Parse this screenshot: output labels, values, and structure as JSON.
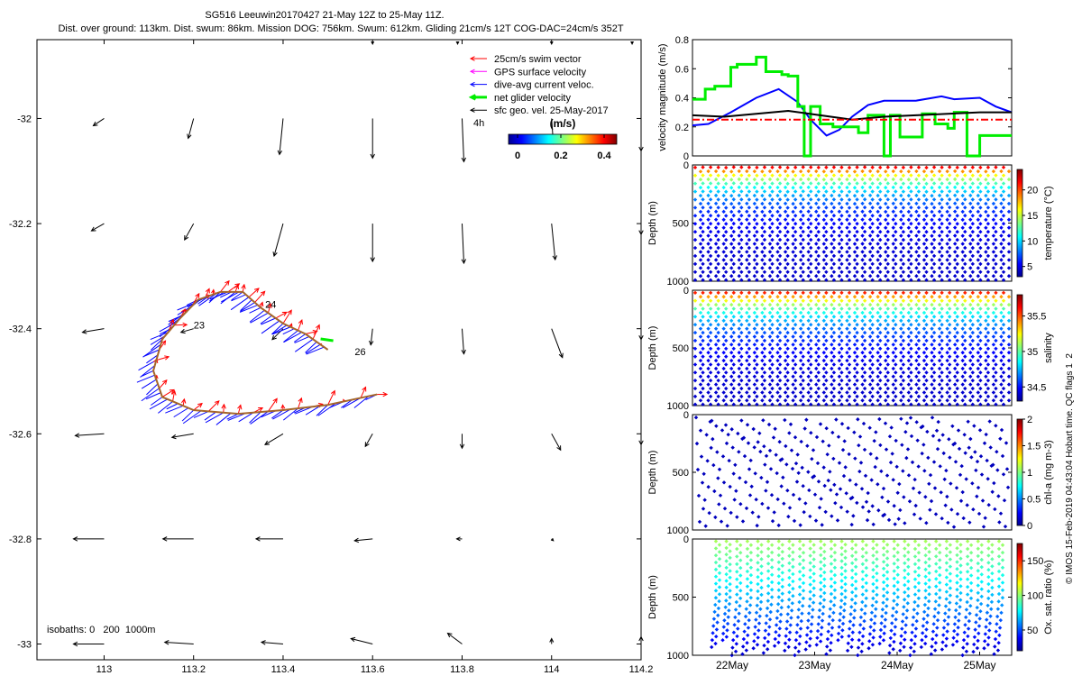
{
  "header": {
    "title": "SG516 Leeuwin20170427 21-May 12Z to 25-May 11Z.",
    "subtitle": "Dist. over ground: 113km. Dist. swum: 86km. Mission DOG: 756km. Swum: 612km. Gliding 21cm/s 12T COG-DAC=24cm/s 352T"
  },
  "colors": {
    "swim": "#ff0000",
    "gps": "#ff00ff",
    "dac": "#0000ff",
    "net": "#00ee00",
    "geo": "#000000",
    "track": "#a5662a",
    "refline": "#ff0000"
  },
  "chart_data": [
    {
      "type": "scatter",
      "name": "map",
      "xlim": [
        112.85,
        114.2
      ],
      "ylim": [
        -33.03,
        -31.85
      ],
      "xticks": [
        113,
        113.2,
        113.4,
        113.6,
        113.8,
        114,
        114.2
      ],
      "yticks": [
        -32,
        -32.2,
        -32.4,
        -32.6,
        -32.8,
        -33
      ],
      "xtick_labels": [
        "113",
        "113.2",
        "113.4",
        "113.6",
        "113.8",
        "114",
        "114.2"
      ],
      "ytick_labels": [
        "-32",
        "-32.2",
        "-32.4",
        "-32.6",
        "-32.8",
        "-33"
      ],
      "legend": [
        {
          "label": "25cm/s swim vector",
          "color": "#ff0000"
        },
        {
          "label": "GPS surface velocity",
          "color": "#ff00ff"
        },
        {
          "label": "dive-avg current veloc.",
          "color": "#0000ff"
        },
        {
          "label": "net glider velocity",
          "color": "#00ee00"
        },
        {
          "label": "sfc geo. vel. 25-May-2017",
          "color": "#000000"
        }
      ],
      "legend_location": "top-right",
      "scale_label": "4h",
      "colorbar": {
        "label": "(m/s)",
        "ticks": [
          "0",
          "0.2",
          "0.4"
        ],
        "range": [
          0,
          0.5
        ]
      },
      "isobath_note": "isobaths: 0   200  1000m",
      "day_labels": [
        {
          "text": "23",
          "lon": 113.2,
          "lat": -32.4
        },
        {
          "text": "24",
          "lon": 113.36,
          "lat": -32.36
        },
        {
          "text": "26",
          "lon": 113.56,
          "lat": -32.45
        }
      ],
      "track": [
        [
          113.61,
          -32.525
        ],
        [
          113.5,
          -32.545
        ],
        [
          113.4,
          -32.555
        ],
        [
          113.3,
          -32.562
        ],
        [
          113.2,
          -32.555
        ],
        [
          113.13,
          -32.53
        ],
        [
          113.11,
          -32.48
        ],
        [
          113.13,
          -32.42
        ],
        [
          113.17,
          -32.38
        ],
        [
          113.21,
          -32.345
        ],
        [
          113.26,
          -32.33
        ],
        [
          113.31,
          -32.33
        ],
        [
          113.35,
          -32.36
        ],
        [
          113.4,
          -32.39
        ],
        [
          113.45,
          -32.41
        ],
        [
          113.5,
          -32.44
        ]
      ],
      "geo_vectors": [
        {
          "lon": 113.0,
          "lat": -32.0,
          "u": -0.3,
          "v": -0.2
        },
        {
          "lon": 113.2,
          "lat": -32.0,
          "u": -0.15,
          "v": -0.55
        },
        {
          "lon": 113.4,
          "lat": -32.0,
          "u": -0.1,
          "v": -1.0
        },
        {
          "lon": 113.6,
          "lat": -32.0,
          "u": 0.0,
          "v": -1.1
        },
        {
          "lon": 113.8,
          "lat": -32.0,
          "u": 0.05,
          "v": -1.2
        },
        {
          "lon": 114.0,
          "lat": -32.0,
          "u": 0.05,
          "v": -0.7
        },
        {
          "lon": 114.2,
          "lat": -32.0,
          "u": 0.0,
          "v": -0.9
        },
        {
          "lon": 113.0,
          "lat": -32.2,
          "u": -0.35,
          "v": -0.2
        },
        {
          "lon": 113.2,
          "lat": -32.2,
          "u": -0.25,
          "v": -0.45
        },
        {
          "lon": 113.4,
          "lat": -32.2,
          "u": -0.25,
          "v": -0.9
        },
        {
          "lon": 113.6,
          "lat": -32.2,
          "u": 0.0,
          "v": -1.05
        },
        {
          "lon": 113.8,
          "lat": -32.2,
          "u": 0.05,
          "v": -1.1
        },
        {
          "lon": 114.0,
          "lat": -32.2,
          "u": 0.1,
          "v": -1.0
        },
        {
          "lon": 114.2,
          "lat": -32.2,
          "u": 0.0,
          "v": -0.3
        },
        {
          "lon": 113.0,
          "lat": -32.4,
          "u": -0.6,
          "v": -0.1
        },
        {
          "lon": 113.2,
          "lat": -32.4,
          "u": -0.35,
          "v": -0.1
        },
        {
          "lon": 113.4,
          "lat": -32.4,
          "u": -0.3,
          "v": -0.3
        },
        {
          "lon": 113.6,
          "lat": -32.4,
          "u": -0.05,
          "v": -0.45
        },
        {
          "lon": 113.8,
          "lat": -32.4,
          "u": 0.05,
          "v": -0.7
        },
        {
          "lon": 114.0,
          "lat": -32.4,
          "u": 0.3,
          "v": -0.8
        },
        {
          "lon": 114.2,
          "lat": -32.4,
          "u": 0.0,
          "v": -0.3
        },
        {
          "lon": 113.0,
          "lat": -32.6,
          "u": -0.8,
          "v": -0.05
        },
        {
          "lon": 113.2,
          "lat": -32.6,
          "u": -0.6,
          "v": -0.1
        },
        {
          "lon": 113.4,
          "lat": -32.6,
          "u": -0.5,
          "v": -0.3
        },
        {
          "lon": 113.6,
          "lat": -32.6,
          "u": -0.2,
          "v": -0.35
        },
        {
          "lon": 113.8,
          "lat": -32.6,
          "u": 0.0,
          "v": -0.4
        },
        {
          "lon": 114.0,
          "lat": -32.6,
          "u": 0.25,
          "v": -0.45
        },
        {
          "lon": 114.2,
          "lat": -32.6,
          "u": 0.0,
          "v": -0.3
        },
        {
          "lon": 113.0,
          "lat": -32.8,
          "u": -0.85,
          "v": 0.0
        },
        {
          "lon": 113.2,
          "lat": -32.8,
          "u": -0.85,
          "v": 0.0
        },
        {
          "lon": 113.4,
          "lat": -32.8,
          "u": -0.75,
          "v": 0.0
        },
        {
          "lon": 113.6,
          "lat": -32.8,
          "u": -0.5,
          "v": -0.05
        },
        {
          "lon": 113.8,
          "lat": -32.8,
          "u": -0.15,
          "v": 0.0
        },
        {
          "lon": 114.0,
          "lat": -32.8,
          "u": 0.05,
          "v": -0.05
        },
        {
          "lon": 113.0,
          "lat": -33.0,
          "u": -0.85,
          "v": 0.0
        },
        {
          "lon": 113.2,
          "lat": -33.0,
          "u": -0.8,
          "v": 0.05
        },
        {
          "lon": 113.4,
          "lat": -33.0,
          "u": -0.6,
          "v": 0.05
        },
        {
          "lon": 113.6,
          "lat": -33.0,
          "u": -0.6,
          "v": 0.15
        },
        {
          "lon": 113.8,
          "lat": -33.0,
          "u": -0.4,
          "v": 0.3
        },
        {
          "lon": 114.0,
          "lat": -33.0,
          "u": 0.0,
          "v": 0.15
        },
        {
          "lon": 114.2,
          "lat": -33.0,
          "u": 0.0,
          "v": 0.2
        }
      ]
    },
    {
      "type": "line",
      "name": "velocity",
      "ylabel": "velocity magnitude (m/s)",
      "ylim": [
        0,
        0.8
      ],
      "yticks": [
        0,
        0.2,
        0.4,
        0.6,
        0.8
      ],
      "ytick_labels": [
        "0",
        "0.2",
        "0.4",
        "0.6",
        "0.8"
      ],
      "xlim": [
        0,
        1
      ],
      "series": [
        {
          "name": "dive-avg current veloc.",
          "color": "#0000ff",
          "x": [
            0,
            0.05,
            0.12,
            0.2,
            0.27,
            0.33,
            0.37,
            0.42,
            0.46,
            0.5,
            0.55,
            0.6,
            0.7,
            0.78,
            0.82,
            0.9,
            0.95,
            1
          ],
          "y": [
            0.21,
            0.22,
            0.3,
            0.4,
            0.46,
            0.37,
            0.25,
            0.14,
            0.18,
            0.27,
            0.35,
            0.38,
            0.38,
            0.41,
            0.39,
            0.4,
            0.34,
            0.3
          ]
        },
        {
          "name": "net glider velocity",
          "color": "#00ee00",
          "x": [
            0,
            0.04,
            0.04,
            0.07,
            0.07,
            0.12,
            0.12,
            0.14,
            0.14,
            0.2,
            0.2,
            0.23,
            0.23,
            0.28,
            0.28,
            0.3,
            0.3,
            0.33,
            0.33,
            0.35,
            0.35,
            0.37,
            0.37,
            0.4,
            0.4,
            0.44,
            0.44,
            0.52,
            0.52,
            0.55,
            0.55,
            0.6,
            0.6,
            0.62,
            0.62,
            0.65,
            0.65,
            0.67,
            0.67,
            0.72,
            0.72,
            0.76,
            0.76,
            0.8,
            0.8,
            0.82,
            0.82,
            0.86,
            0.86,
            0.9,
            0.9,
            0.94,
            0.94,
            1
          ],
          "y": [
            0.39,
            0.39,
            0.46,
            0.46,
            0.48,
            0.48,
            0.61,
            0.61,
            0.63,
            0.63,
            0.68,
            0.68,
            0.58,
            0.58,
            0.56,
            0.56,
            0.55,
            0.55,
            0.34,
            0.34,
            0.0,
            0.0,
            0.34,
            0.34,
            0.22,
            0.22,
            0.2,
            0.2,
            0.16,
            0.16,
            0.28,
            0.28,
            0.0,
            0.0,
            0.28,
            0.28,
            0.13,
            0.13,
            0.13,
            0.13,
            0.29,
            0.29,
            0.22,
            0.22,
            0.19,
            0.19,
            0.3,
            0.3,
            0.0,
            0.0,
            0.14,
            0.14,
            0.14,
            0.14
          ]
        },
        {
          "name": "mean speed",
          "color": "#000000",
          "x": [
            0,
            0.1,
            0.2,
            0.3,
            0.4,
            0.5,
            0.6,
            0.7,
            0.8,
            0.9,
            1
          ],
          "y": [
            0.28,
            0.27,
            0.29,
            0.31,
            0.28,
            0.25,
            0.27,
            0.28,
            0.29,
            0.3,
            0.3
          ]
        },
        {
          "name": "25cm/s reference",
          "color": "#ff0000",
          "dashed": true,
          "x": [
            0,
            1
          ],
          "y": [
            0.25,
            0.25
          ]
        }
      ]
    },
    {
      "type": "scatter",
      "name": "temperature",
      "ylabel": "Depth (m)",
      "cbar_label": "temperature (°C)",
      "ylim": [
        0,
        1000
      ],
      "yticks": [
        0,
        500,
        1000
      ],
      "ytick_labels": [
        "0",
        "500",
        "1000"
      ],
      "cbar_range": [
        3,
        24
      ],
      "cbar_ticks": [
        5,
        10,
        15,
        20
      ],
      "cbar_tick_labels": [
        "5",
        "10",
        "15",
        "20"
      ],
      "profiles": 41,
      "max_depth": 1000,
      "profile_top": [
        22,
        20,
        20,
        21,
        23,
        19,
        20,
        21,
        22,
        20,
        21,
        20,
        23,
        21,
        19,
        20,
        22,
        21,
        20,
        21,
        23,
        20,
        19,
        21,
        22,
        20,
        21,
        22,
        20,
        21,
        23,
        20,
        21,
        19,
        22,
        20,
        21,
        22,
        21,
        20,
        21
      ],
      "profile_depth": [
        990,
        995,
        1000,
        990,
        995,
        998,
        990,
        1000,
        995,
        992,
        998,
        990,
        995,
        1000,
        993,
        997,
        991,
        999,
        994,
        996,
        990,
        1000,
        995,
        992,
        998,
        990,
        995,
        1000,
        993,
        997,
        991,
        999,
        994,
        996,
        990,
        1000,
        995,
        992,
        998,
        990,
        995
      ]
    },
    {
      "type": "scatter",
      "name": "salinity",
      "ylabel": "Depth (m)",
      "cbar_label": "salinity",
      "ylim": [
        0,
        1000
      ],
      "yticks": [
        0,
        500,
        1000
      ],
      "ytick_labels": [
        "0",
        "500",
        "1000"
      ],
      "cbar_range": [
        34.3,
        35.8
      ],
      "cbar_ticks": [
        34.5,
        35,
        35.5
      ],
      "cbar_tick_labels": [
        "34.5",
        "35",
        "35.5"
      ],
      "profiles": 41,
      "max_depth": 1000
    },
    {
      "type": "scatter",
      "name": "chlorophyll",
      "ylabel": "Depth (m)",
      "cbar_label": "chl-a (mg m-3)",
      "ylim": [
        0,
        1000
      ],
      "yticks": [
        0,
        500,
        1000
      ],
      "ytick_labels": [
        "0",
        "500",
        "1000"
      ],
      "cbar_range": [
        0,
        2
      ],
      "cbar_ticks": [
        0,
        0.5,
        1,
        1.5,
        2
      ],
      "cbar_tick_labels": [
        "0",
        "0.5",
        "1",
        "1.5",
        "2"
      ],
      "point_value": 0
    },
    {
      "type": "scatter",
      "name": "oxygen",
      "ylabel": "Depth (m)",
      "cbar_label": "Ox. sat. ratio (%)",
      "ylim": [
        0,
        1000
      ],
      "yticks": [
        0,
        500,
        1000
      ],
      "ytick_labels": [
        "0",
        "500",
        "1000"
      ],
      "xticks": [
        "22May",
        "23May",
        "24May",
        "25May"
      ],
      "cbar_range": [
        20,
        175
      ],
      "cbar_ticks": [
        50,
        100,
        150
      ],
      "cbar_tick_labels": [
        "50",
        "100",
        "150"
      ],
      "profile_depth": [
        930,
        870,
        1000,
        990,
        940,
        980,
        920,
        960,
        1000,
        950,
        910,
        990,
        870,
        960,
        1000,
        940,
        900,
        980,
        960,
        1000,
        930,
        990,
        950,
        910,
        1000,
        970,
        940,
        990
      ]
    }
  ],
  "credit": "© IMOS 15-Feb-2019 04:43:04 Hobart time. QC flags 1  2"
}
